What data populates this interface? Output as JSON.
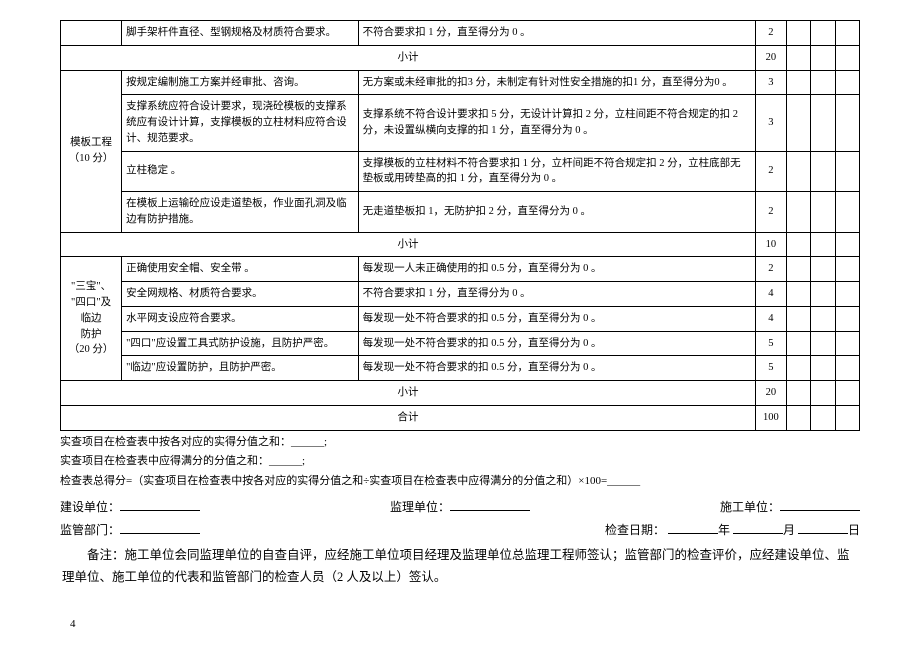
{
  "table": {
    "row_scaffold": {
      "item": "脚手架杆件直径、型钢规格及材质符合要求。",
      "criteria": "不符合要求扣 1 分，直至得分为 0 。",
      "score": "2"
    },
    "subtotal_1": {
      "label": "小计",
      "score": "20"
    },
    "group_formwork": {
      "title": "模板工程\n（10 分）",
      "rows": [
        {
          "item": "按规定编制施工方案并经审批、咨询。",
          "criteria": "无方案或未经审批的扣3 分，未制定有针对性安全措施的扣1 分，直至得分为0 。",
          "score": "3"
        },
        {
          "item": "支撑系统应符合设计要求，现浇砼模板的支撑系统应有设计计算，支撑模板的立柱材料应符合设计、规范要求。",
          "criteria": "支撑系统不符合设计要求扣 5 分，无设计计算扣 2 分，立柱间距不符合规定的扣 2 分，未设置纵横向支撑的扣 1 分，直至得分为 0 。",
          "score": "3"
        },
        {
          "item": "立柱稳定 。",
          "criteria": "支撑模板的立柱材料不符合要求扣 1 分，立杆间距不符合规定扣 2 分，立柱底部无垫板或用砖垫高的扣 1 分，直至得分为 0 。",
          "score": "2"
        },
        {
          "item": "在模板上运输砼应设走道垫板，作业面孔洞及临边有防护措施。",
          "criteria": "无走道垫板扣 1，无防护扣 2 分，直至得分为 0 。",
          "score": "2"
        }
      ],
      "subtotal": {
        "label": "小计",
        "score": "10"
      }
    },
    "group_sanbao": {
      "title": "\"三宝\"、\n\"四口\"及\n临边\n防护\n（20 分）",
      "rows": [
        {
          "item": "正确使用安全帽、安全带  。",
          "criteria": "每发现一人未正确使用的扣 0.5 分，直至得分为 0 。",
          "score": "2"
        },
        {
          "item": "安全网规格、材质符合要求。",
          "criteria": "不符合要求扣 1 分，直至得分为 0 。",
          "score": "4"
        },
        {
          "item": "水平网支设应符合要求。",
          "criteria": "每发现一处不符合要求的扣 0.5 分，直至得分为 0 。",
          "score": "4"
        },
        {
          "item": "\"四口\"应设置工具式防护设施，且防护严密。",
          "criteria": "每发现一处不符合要求的扣 0.5 分，直至得分为 0 。",
          "score": "5"
        },
        {
          "item": "\"临边\"应设置防护，且防护严密。",
          "criteria": "每发现一处不符合要求的扣 0.5 分，直至得分为 0 。",
          "score": "5"
        }
      ],
      "subtotal": {
        "label": "小计",
        "score": "20"
      }
    },
    "grand_total": {
      "label": "合计",
      "score": "100"
    }
  },
  "notes": {
    "line1": "实查项目在检查表中按各对应的实得分值之和：______;",
    "line2": "实查项目在检查表中应得满分的分值之和：______;",
    "line3": "检查表总得分=（实查项目在检查表中按各对应的实得分值之和÷实查项目在检查表中应得满分的分值之和）×100=______"
  },
  "signatures": {
    "construction_unit": "建设单位：",
    "supervision_unit": "监理单位：",
    "builder_unit": "施工单位：",
    "regulator": "监管部门：",
    "check_date": "检查日期：",
    "year": "年",
    "month": "月",
    "day": "日"
  },
  "remark": "备注：施工单位会同监理单位的自查自评，应经施工单位项目经理及监理单位总监理工程师签认；监管部门的检查评价，应经建设单位、监理单位、施工单位的代表和监管部门的检查人员（2 人及以上）签认。",
  "page_number": "4"
}
